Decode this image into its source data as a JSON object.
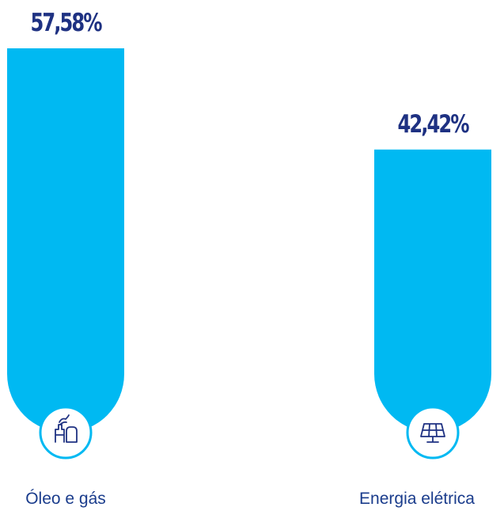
{
  "chart_data": {
    "type": "bar",
    "categories": [
      "Óleo e gás",
      "Energia elétrica"
    ],
    "values": [
      57.58,
      42.42
    ],
    "value_labels": [
      "57,58%",
      "42,42%"
    ],
    "icons": [
      "oil-gas-plant-icon",
      "solar-panel-icon"
    ],
    "ylim": [
      0,
      57.58
    ],
    "grid": false,
    "legend": "none",
    "colors": {
      "bar": "#00b9f2",
      "label": "#1e3182",
      "category": "#1a3c8c",
      "icon_stroke": "#1e3182",
      "icon_bg": "#ffffff"
    }
  }
}
